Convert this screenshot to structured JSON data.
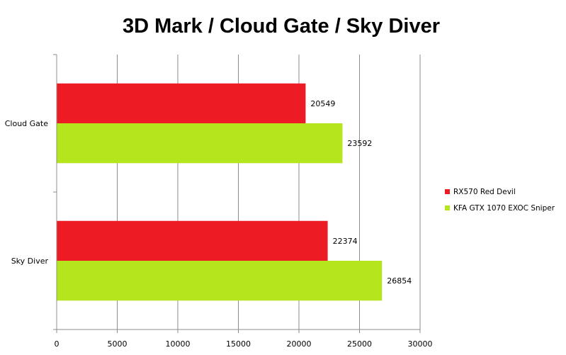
{
  "chart_data": {
    "type": "bar",
    "orientation": "horizontal",
    "title": "3D Mark / Cloud Gate / Sky Diver",
    "categories": [
      "Cloud Gate",
      "Sky Diver"
    ],
    "series": [
      {
        "name": "RX570 Red Devil",
        "color": "#ed1c24",
        "values": [
          20549,
          22374
        ]
      },
      {
        "name": "KFA GTX 1070 EXOC Sniper",
        "color": "#b5e61d",
        "values": [
          23592,
          26854
        ]
      }
    ],
    "data_labels": true,
    "xlim": [
      0,
      30000
    ],
    "xticks": [
      0,
      5000,
      10000,
      15000,
      20000,
      25000,
      30000
    ],
    "grid": "vertical",
    "legend": "right",
    "xlabel": "",
    "ylabel": ""
  }
}
